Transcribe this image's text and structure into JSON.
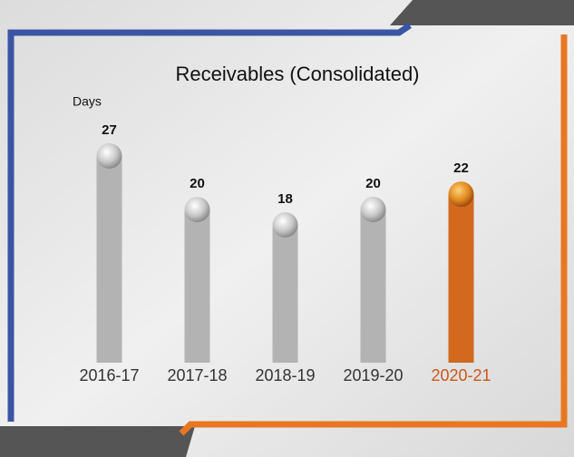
{
  "chart_data": {
    "type": "bar",
    "title": "Receivables (Consolidated)",
    "y_label": "Days",
    "categories": [
      "2016-17",
      "2017-18",
      "2018-19",
      "2019-20",
      "2020-21"
    ],
    "values": [
      27,
      20,
      18,
      20,
      22
    ],
    "colors": [
      "#b3b3b3",
      "#b3b3b3",
      "#b3b3b3",
      "#b3b3b3",
      "#d2691e"
    ],
    "label_colors": [
      "#333333",
      "#333333",
      "#333333",
      "#333333",
      "#c8581a"
    ]
  }
}
